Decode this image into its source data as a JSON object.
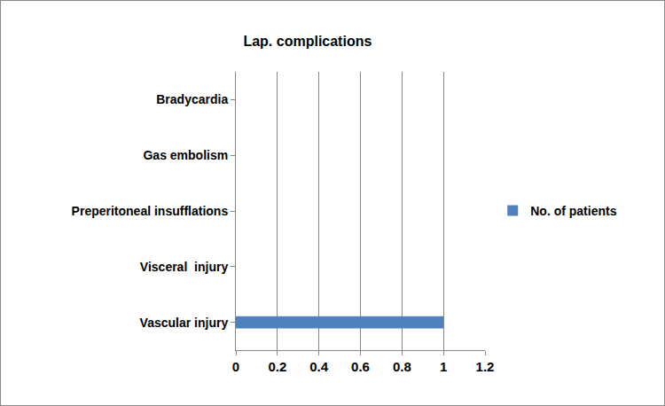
{
  "chart_data": {
    "type": "bar",
    "orientation": "horizontal",
    "title": "Lap. complications",
    "categories": [
      "Vascular injury",
      "Visceral  injury",
      "Preperitoneal insufflations",
      "Gas embolism",
      "Bradycardia"
    ],
    "series": [
      {
        "name": "No. of patients",
        "color": "#4f81bd",
        "values": [
          1,
          0,
          0,
          0,
          0
        ]
      }
    ],
    "xlim": [
      0,
      1.2
    ],
    "xticks": [
      0,
      0.2,
      0.4,
      0.6,
      0.8,
      1,
      1.2
    ],
    "grid": true,
    "legend": "right"
  }
}
